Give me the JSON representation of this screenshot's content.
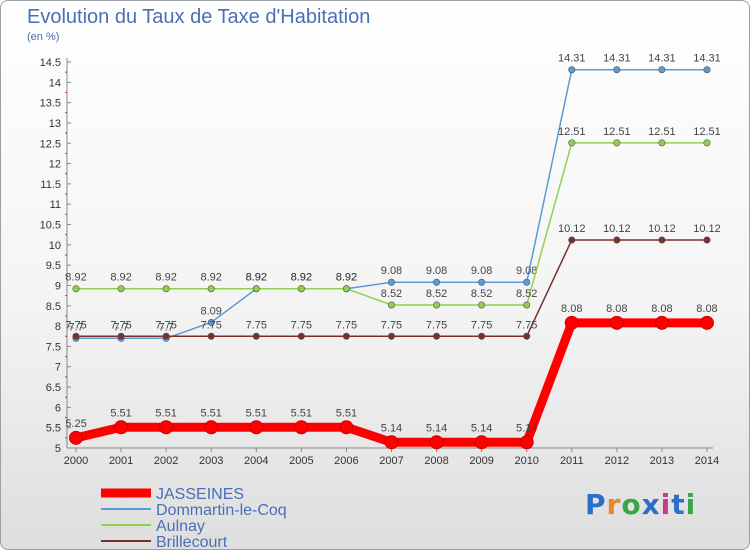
{
  "header": {
    "title": "Evolution du Taux de Taxe d'Habitation",
    "unit": "(en %)"
  },
  "logo": {
    "text": "Proxiti",
    "colors": [
      "#2a6fc8",
      "#e08a2a",
      "#3aa64a",
      "#2a6fc8",
      "#c83a8a",
      "#2a6fc8",
      "#3aa64a"
    ]
  },
  "chart_data": {
    "type": "line",
    "title": "Evolution du Taux de Taxe d'Habitation",
    "ylabel": "(en %)",
    "xlabel": "",
    "x": [
      "2000",
      "2001",
      "2002",
      "2003",
      "2004",
      "2005",
      "2006",
      "2007",
      "2008",
      "2009",
      "2010",
      "2011",
      "2012",
      "2013",
      "2014"
    ],
    "ylim": [
      5,
      14.5
    ],
    "yticks": [
      "5",
      "5.5",
      "6",
      "6.5",
      "7",
      "7.5",
      "8",
      "8.5",
      "9",
      "9.5",
      "10",
      "10.5",
      "11",
      "11.5",
      "12",
      "12.5",
      "13",
      "13.5",
      "14",
      "14.5"
    ],
    "grid": false,
    "legend_position": "bottom-left",
    "series": [
      {
        "name": "Dommartin-le-Coq",
        "color": "#5b9bd5",
        "values": [
          7.7,
          7.7,
          7.7,
          8.09,
          8.92,
          8.92,
          8.92,
          9.08,
          9.08,
          9.08,
          9.08,
          14.31,
          14.31,
          14.31,
          14.31
        ],
        "labels": [
          "7.7",
          "7.7",
          "7.7",
          "8.09",
          "8.92",
          "8.92",
          "8.92",
          "9.08",
          "9.08",
          "9.08",
          "9.08",
          "14.31",
          "14.31",
          "14.31",
          "14.31"
        ]
      },
      {
        "name": "Aulnay",
        "color": "#8fd14f",
        "values": [
          8.92,
          8.92,
          8.92,
          8.92,
          8.92,
          8.92,
          8.92,
          8.52,
          8.52,
          8.52,
          8.52,
          12.51,
          12.51,
          12.51,
          12.51
        ],
        "labels": [
          "8.92",
          "8.92",
          "8.92",
          "8.92",
          "8.92",
          "8.92",
          "8.92",
          "8.52",
          "8.52",
          "8.52",
          "8.52",
          "12.51",
          "12.51",
          "12.51",
          "12.51"
        ]
      },
      {
        "name": "Brillecourt",
        "color": "#7a2f2f",
        "values": [
          7.75,
          7.75,
          7.75,
          7.75,
          7.75,
          7.75,
          7.75,
          7.75,
          7.75,
          7.75,
          7.75,
          10.12,
          10.12,
          10.12,
          10.12
        ],
        "labels": [
          "7.75",
          "7.75",
          "7.75",
          "7.75",
          "7.75",
          "7.75",
          "7.75",
          "7.75",
          "7.75",
          "7.75",
          "7.75",
          "10.12",
          "10.12",
          "10.12",
          "10.12"
        ]
      },
      {
        "name": "JASSEINES",
        "color": "#ff0000",
        "values": [
          5.25,
          5.51,
          5.51,
          5.51,
          5.51,
          5.51,
          5.51,
          5.14,
          5.14,
          5.14,
          5.14,
          8.08,
          8.08,
          8.08,
          8.08
        ],
        "labels": [
          "5.25",
          "5.51",
          "5.51",
          "5.51",
          "5.51",
          "5.51",
          "5.51",
          "5.14",
          "5.14",
          "5.14",
          "5.14",
          "8.08",
          "8.08",
          "8.08",
          "8.08"
        ]
      }
    ],
    "legend_order": [
      "JASSEINES",
      "Dommartin-le-Coq",
      "Aulnay",
      "Brillecourt"
    ]
  }
}
